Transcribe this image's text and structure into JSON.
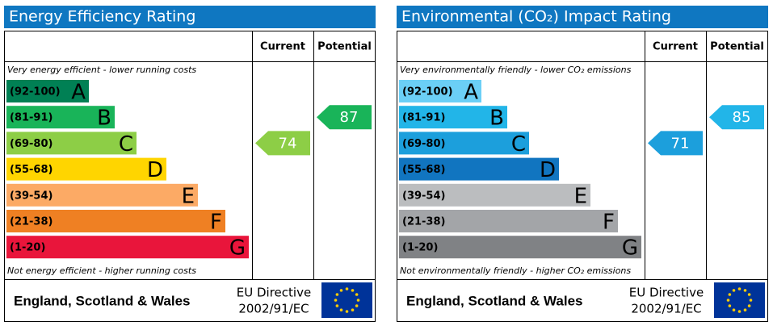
{
  "chart_data": [
    {
      "type": "epc",
      "title": "Energy Efficiency Rating",
      "column_headers": [
        "Current",
        "Potential"
      ],
      "top_note": "Very energy efficient - lower running costs",
      "bottom_note": "Not energy efficient - higher running costs",
      "bands": [
        {
          "range": "(92-100)",
          "letter": "A",
          "color": "#008054"
        },
        {
          "range": "(81-91)",
          "letter": "B",
          "color": "#19b459"
        },
        {
          "range": "(69-80)",
          "letter": "C",
          "color": "#8dce46"
        },
        {
          "range": "(55-68)",
          "letter": "D",
          "color": "#ffd500"
        },
        {
          "range": "(39-54)",
          "letter": "E",
          "color": "#fcaa65"
        },
        {
          "range": "(21-38)",
          "letter": "F",
          "color": "#ef8023"
        },
        {
          "range": "(1-20)",
          "letter": "G",
          "color": "#e9153b"
        }
      ],
      "current": 74,
      "potential": 87,
      "footer": "England, Scotland & Wales",
      "directive": [
        "EU Directive",
        "2002/91/EC"
      ]
    },
    {
      "type": "epc",
      "title": "Environmental (CO₂) Impact Rating",
      "column_headers": [
        "Current",
        "Potential"
      ],
      "top_note": "Very environmentally friendly - lower CO₂ emissions",
      "bottom_note": "Not environmentally friendly - higher CO₂ emissions",
      "bands": [
        {
          "range": "(92-100)",
          "letter": "A",
          "color": "#6bcff6"
        },
        {
          "range": "(81-91)",
          "letter": "B",
          "color": "#22b5e8"
        },
        {
          "range": "(69-80)",
          "letter": "C",
          "color": "#1c9fdc"
        },
        {
          "range": "(55-68)",
          "letter": "D",
          "color": "#1175c0"
        },
        {
          "range": "(39-54)",
          "letter": "E",
          "color": "#bbbdbf"
        },
        {
          "range": "(21-38)",
          "letter": "F",
          "color": "#a3a5a8"
        },
        {
          "range": "(1-20)",
          "letter": "G",
          "color": "#808285"
        }
      ],
      "current": 71,
      "potential": 85,
      "footer": "England, Scotland & Wales",
      "directive": [
        "EU Directive",
        "2002/91/EC"
      ]
    }
  ]
}
